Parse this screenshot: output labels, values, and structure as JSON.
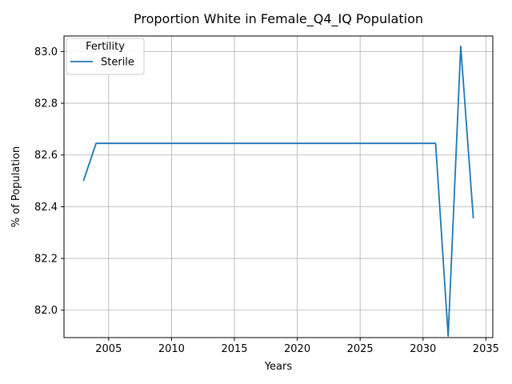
{
  "chart_data": {
    "type": "line",
    "title": "Proportion White in Female_Q4_IQ Population",
    "xlabel": "Years",
    "ylabel": "% of Population",
    "xlim": [
      2001.45,
      2035.55
    ],
    "ylim": [
      81.894,
      83.06
    ],
    "xticks": [
      2005,
      2010,
      2015,
      2020,
      2025,
      2030,
      2035
    ],
    "yticks": [
      82.0,
      82.2,
      82.4,
      82.6,
      82.8,
      83.0
    ],
    "xtick_labels": [
      "2005",
      "2010",
      "2015",
      "2020",
      "2025",
      "2030",
      "2035"
    ],
    "ytick_labels": [
      "82.0",
      "82.2",
      "82.4",
      "82.6",
      "82.8",
      "83.0"
    ],
    "grid": true,
    "legend": {
      "title": "Fertility",
      "placement": "upper-left"
    },
    "series": [
      {
        "name": "Sterile",
        "color": "#1f77b4",
        "x": [
          2003,
          2004,
          2005,
          2006,
          2007,
          2008,
          2009,
          2010,
          2011,
          2012,
          2013,
          2014,
          2015,
          2016,
          2017,
          2018,
          2019,
          2020,
          2021,
          2022,
          2023,
          2024,
          2025,
          2026,
          2027,
          2028,
          2029,
          2030,
          2031,
          2032,
          2033,
          2034
        ],
        "y": [
          82.5,
          82.645,
          82.645,
          82.645,
          82.645,
          82.645,
          82.645,
          82.645,
          82.645,
          82.645,
          82.645,
          82.645,
          82.645,
          82.645,
          82.645,
          82.645,
          82.645,
          82.645,
          82.645,
          82.645,
          82.645,
          82.645,
          82.645,
          82.645,
          82.645,
          82.645,
          82.645,
          82.645,
          82.645,
          81.9,
          83.02,
          82.355
        ]
      }
    ]
  }
}
